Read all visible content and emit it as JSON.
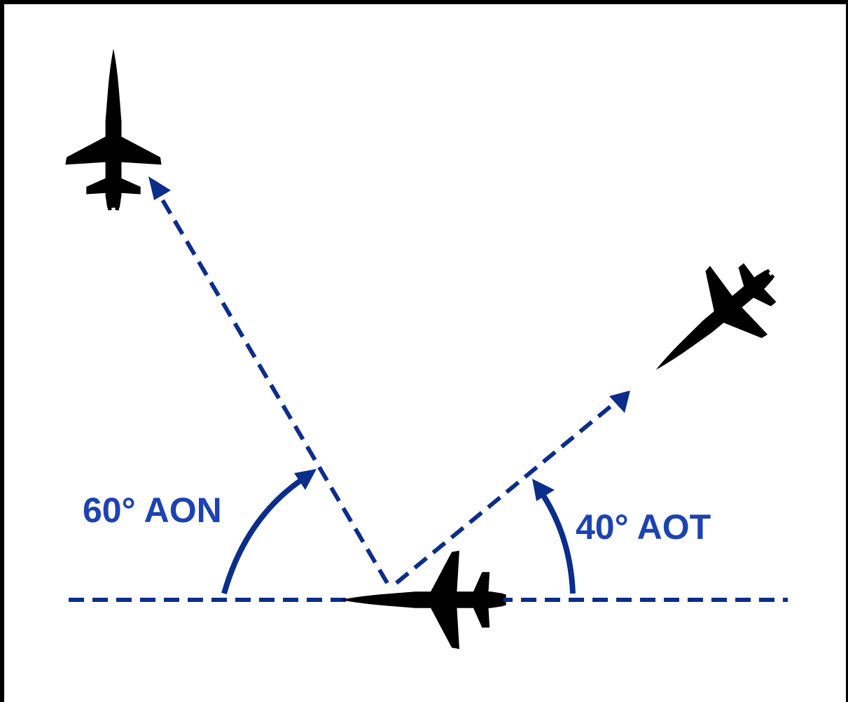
{
  "diagram": {
    "labels": {
      "aon": "60° AON",
      "aot": "40° AOT"
    },
    "colors": {
      "line": "#0b2d8c",
      "label": "#1c43b3",
      "bandit": "#9a3b5a",
      "bandit_light": "#e8a6bc",
      "bandit_dark": "#5e1a30",
      "friendly": "#4d5b58",
      "friendly_dark": "#2c3634",
      "friendly_nose": "#d8dcdc"
    },
    "aircraft": [
      {
        "role": "friendly",
        "icon": "jet-icon"
      },
      {
        "role": "bandit",
        "icon": "jet-icon"
      },
      {
        "role": "bandit",
        "icon": "jet-icon"
      }
    ]
  }
}
